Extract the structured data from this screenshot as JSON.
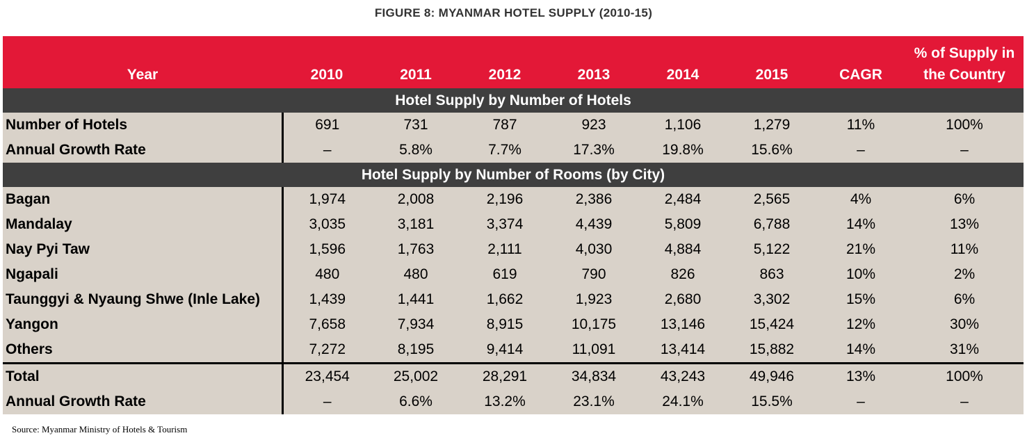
{
  "title": "FIGURE 8: MYANMAR HOTEL SUPPLY (2010-15)",
  "header": {
    "year_label": "Year",
    "years": [
      "2010",
      "2011",
      "2012",
      "2013",
      "2014",
      "2015"
    ],
    "cagr": "CAGR",
    "share_line1": "% of Supply in",
    "share_line2": "the Country"
  },
  "section_hotels": "Hotel Supply by Number of Hotels",
  "hotels_rows": [
    {
      "label": "Number of Hotels",
      "values": [
        "691",
        "731",
        "787",
        "923",
        "1,106",
        "1,279"
      ],
      "cagr": "11%",
      "share": "100%"
    },
    {
      "label": "Annual Growth Rate",
      "values": [
        "–",
        "5.8%",
        "7.7%",
        "17.3%",
        "19.8%",
        "15.6%"
      ],
      "cagr": "–",
      "share": "–"
    }
  ],
  "section_rooms": "Hotel Supply by Number of Rooms (by City)",
  "rooms_rows": [
    {
      "label": "Bagan",
      "values": [
        "1,974",
        "2,008",
        "2,196",
        "2,386",
        "2,484",
        "2,565"
      ],
      "cagr": "4%",
      "share": "6%"
    },
    {
      "label": "Mandalay",
      "values": [
        "3,035",
        "3,181",
        "3,374",
        "4,439",
        "5,809",
        "6,788"
      ],
      "cagr": "14%",
      "share": "13%"
    },
    {
      "label": "Nay Pyi Taw",
      "values": [
        "1,596",
        "1,763",
        "2,111",
        "4,030",
        "4,884",
        "5,122"
      ],
      "cagr": "21%",
      "share": "11%"
    },
    {
      "label": "Ngapali",
      "values": [
        "480",
        "480",
        "619",
        "790",
        "826",
        "863"
      ],
      "cagr": "10%",
      "share": "2%"
    },
    {
      "label": "Taunggyi & Nyaung Shwe (Inle Lake)",
      "values": [
        "1,439",
        "1,441",
        "1,662",
        "1,923",
        "2,680",
        "3,302"
      ],
      "cagr": "15%",
      "share": "6%"
    },
    {
      "label": "Yangon",
      "values": [
        "7,658",
        "7,934",
        "8,915",
        "10,175",
        "13,146",
        "15,424"
      ],
      "cagr": "12%",
      "share": "30%"
    },
    {
      "label": "Others",
      "values": [
        "7,272",
        "8,195",
        "9,414",
        "11,091",
        "13,414",
        "15,882"
      ],
      "cagr": "14%",
      "share": "31%"
    }
  ],
  "total_rows": [
    {
      "label": "Total",
      "values": [
        "23,454",
        "25,002",
        "28,291",
        "34,834",
        "43,243",
        "49,946"
      ],
      "cagr": "13%",
      "share": "100%"
    },
    {
      "label": "Annual Growth Rate",
      "values": [
        "–",
        "6.6%",
        "13.2%",
        "23.1%",
        "24.1%",
        "15.5%"
      ],
      "cagr": "–",
      "share": "–"
    }
  ],
  "source": "Source: Myanmar Ministry of Hotels & Tourism",
  "colors": {
    "header_red": "#e31837",
    "section_dark": "#3f3f3f",
    "row_beige": "#d9d2c9"
  }
}
